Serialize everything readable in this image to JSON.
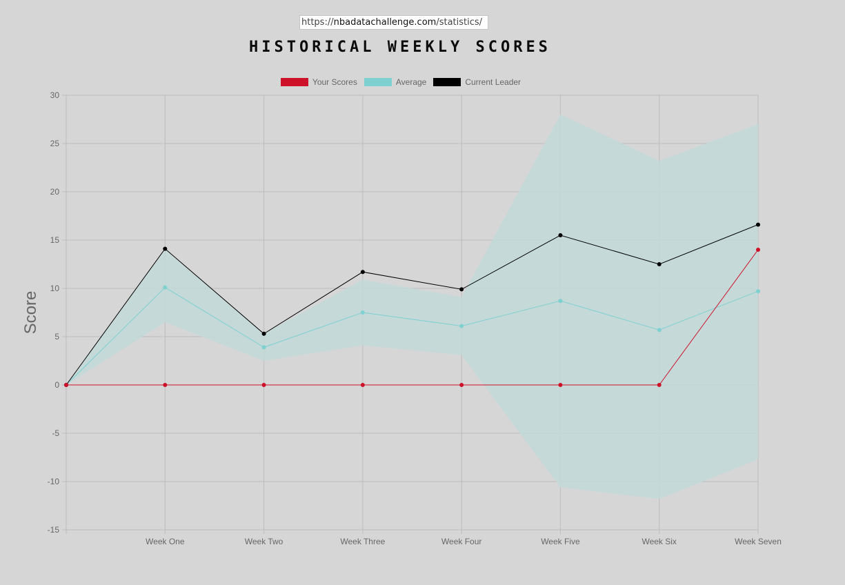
{
  "browser": {
    "url_prefix": "https://",
    "url_host": "nbadatachallenge.com",
    "url_path": "/statistics/"
  },
  "page": {
    "title": "HISTORICAL WEEKLY SCORES"
  },
  "colors": {
    "your_scores": "#cc1128",
    "average": "#7fd0d0",
    "current_leader": "#000000",
    "band_fill": "#c2d9d9",
    "grid": "#bcbcbc",
    "background": "#d6d6d6"
  },
  "chart_data": {
    "type": "line",
    "title": "",
    "xlabel": "",
    "ylabel": "Score",
    "ylim": [
      -15,
      30
    ],
    "ytick_step": 5,
    "grid": true,
    "legend_position": "top-center",
    "x_labels": [
      "",
      "Week One",
      "Week Two",
      "Week Three",
      "Week Four",
      "Week Five",
      "Week Six",
      "Week Seven"
    ],
    "series": [
      {
        "name": "Your Scores",
        "color": "#cc1128",
        "values": [
          0,
          0,
          0,
          0,
          0,
          0,
          0,
          14
        ]
      },
      {
        "name": "Average",
        "color": "#7fd0d0",
        "values": [
          0,
          10.1,
          3.9,
          7.5,
          6.1,
          8.7,
          5.7,
          9.7
        ]
      },
      {
        "name": "Current Leader",
        "color": "#000000",
        "values": [
          0,
          14.1,
          5.3,
          11.7,
          9.9,
          15.5,
          12.5,
          16.6
        ]
      }
    ],
    "band": {
      "upper": [
        0,
        14.0,
        5.3,
        10.9,
        9.1,
        28.0,
        23.2,
        27.0
      ],
      "lower": [
        0,
        6.5,
        2.5,
        4.1,
        3.1,
        -10.6,
        -11.8,
        -7.7
      ]
    }
  }
}
